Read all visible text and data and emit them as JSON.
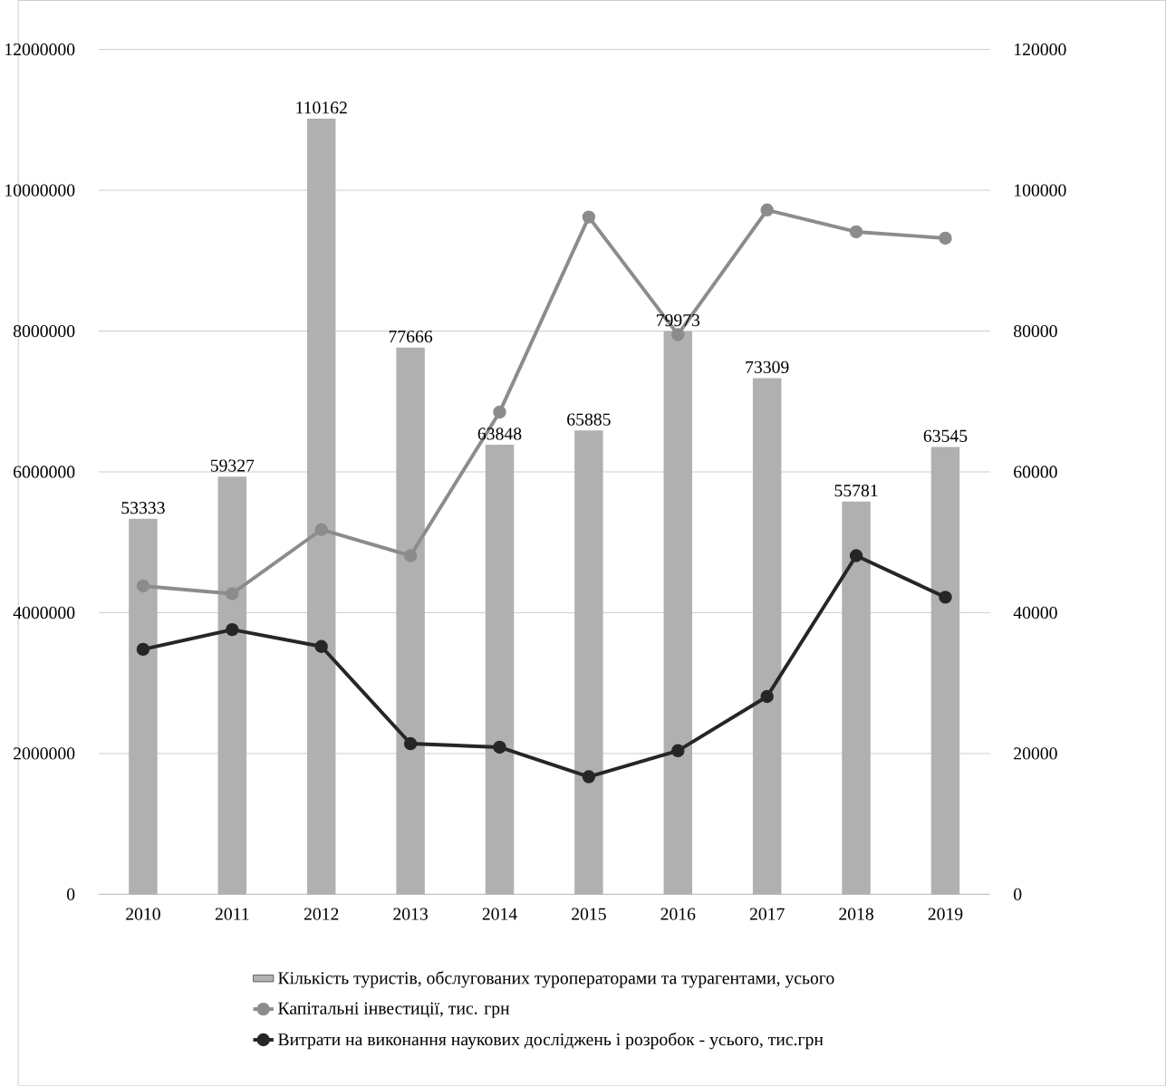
{
  "chart_data": {
    "type": "bar",
    "categories": [
      "2010",
      "2011",
      "2012",
      "2013",
      "2014",
      "2015",
      "2016",
      "2017",
      "2018",
      "2019"
    ],
    "series": [
      {
        "name": "Кількість туристів, обслугованих туроператорами та турагентами, усього",
        "axis": "y2",
        "color": "#b0b0b0",
        "values": [
          53333,
          59327,
          110162,
          77666,
          63848,
          65885,
          79973,
          73309,
          55781,
          63545
        ],
        "value_labels": [
          "53333",
          "59327",
          "110162",
          "77666",
          "63848",
          "65885",
          "79973",
          "73309",
          "55781",
          "63545"
        ]
      },
      {
        "name": "Капітальні інвестиції, тис. грн",
        "type": "line",
        "axis": "y",
        "color": "#8c8c8c",
        "values": [
          4380000,
          4270000,
          5180000,
          4810000,
          6850000,
          9620000,
          7950000,
          9720000,
          9410000,
          9320000
        ]
      },
      {
        "name": "Витрати на виконання наукових досліджень і розробок - усього, тис.грн",
        "type": "line",
        "axis": "y",
        "color": "#262626",
        "values": [
          3480000,
          3760000,
          3520000,
          2140000,
          2090000,
          1670000,
          2040000,
          2810000,
          4810000,
          4220000
        ]
      }
    ],
    "ylim": [
      0,
      12000000
    ],
    "yticks": [
      0,
      2000000,
      4000000,
      6000000,
      8000000,
      10000000,
      12000000
    ],
    "y2lim": [
      0,
      120000
    ],
    "y2ticks": [
      0,
      20000,
      40000,
      60000,
      80000,
      100000,
      120000
    ],
    "grid": "y",
    "legend": "bottom",
    "marker": "circle",
    "line_style": "solid"
  }
}
